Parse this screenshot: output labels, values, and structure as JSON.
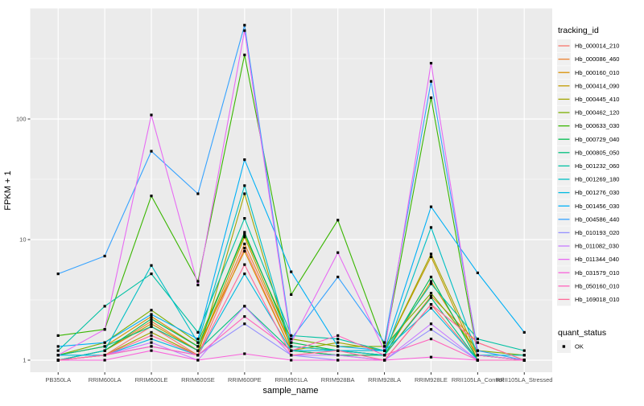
{
  "chart_data": {
    "type": "line",
    "title": "",
    "xlabel": "sample_name",
    "ylabel": "FPKM + 1",
    "y_scale": "log10",
    "y_ticks": [
      1,
      10,
      100
    ],
    "y_tick_labels": [
      "1",
      "10",
      "100"
    ],
    "y_minor_ticks": [
      3.162,
      31.62,
      316.2
    ],
    "ylim_log10": [
      -0.105,
      2.92
    ],
    "grid": true,
    "panel_bg": "#EBEBEB",
    "grid_color": "#FFFFFF",
    "point_color": "#000000",
    "point_shape": "square",
    "legend_position": "right",
    "legend_title": "tracking_id",
    "legend2_title": "quant_status",
    "legend2_items": [
      {
        "label": "OK",
        "marker": "black-square"
      }
    ],
    "categories": [
      "PB350LA",
      "RRIM600LA",
      "RRIM600LE",
      "RRIM600SE",
      "RRIM600PE",
      "RRIM901LA",
      "RRIM928BA",
      "RRIM928LA",
      "RRIM928LE",
      "RRII105LA_Control",
      "RRII105LA_Stressed"
    ],
    "series": [
      {
        "name": "Hb_000014_210",
        "color": "#F8766D",
        "values": [
          1.0,
          1.1,
          1.9,
          1.1,
          8.5,
          1.2,
          1.1,
          1.0,
          2.9,
          1.0,
          1.0
        ]
      },
      {
        "name": "Hb_000086_460",
        "color": "#EA8331",
        "values": [
          1.0,
          1.2,
          2.1,
          1.2,
          9.2,
          1.3,
          1.2,
          1.1,
          3.4,
          1.4,
          1.0
        ]
      },
      {
        "name": "Hb_000160_010",
        "color": "#D89000",
        "values": [
          1.1,
          1.3,
          2.3,
          1.3,
          8.0,
          1.2,
          1.1,
          1.1,
          4.5,
          1.1,
          1.0
        ]
      },
      {
        "name": "Hb_000414_090",
        "color": "#C09B00",
        "values": [
          1.0,
          1.2,
          2.0,
          1.2,
          10.5,
          1.3,
          1.2,
          1.2,
          7.2,
          1.0,
          1.0
        ]
      },
      {
        "name": "Hb_000445_410",
        "color": "#A3A500",
        "values": [
          1.0,
          1.1,
          1.7,
          1.1,
          24.0,
          1.2,
          1.4,
          1.2,
          7.6,
          1.1,
          1.0
        ]
      },
      {
        "name": "Hb_000462_120",
        "color": "#7CAE00",
        "values": [
          1.1,
          1.4,
          2.6,
          1.4,
          11.0,
          1.5,
          1.3,
          1.3,
          3.6,
          1.2,
          1.1
        ]
      },
      {
        "name": "Hb_000633_030",
        "color": "#39B600",
        "values": [
          1.6,
          1.8,
          23.0,
          4.5,
          340,
          3.5,
          14.5,
          1.3,
          150,
          1.1,
          1.0
        ]
      },
      {
        "name": "Hb_000729_040",
        "color": "#00BB4E",
        "values": [
          1.0,
          1.2,
          2.2,
          1.3,
          11.5,
          1.4,
          1.2,
          1.1,
          4.9,
          1.0,
          1.0
        ]
      },
      {
        "name": "Hb_000805_050",
        "color": "#00BF7D",
        "values": [
          1.1,
          1.3,
          1.9,
          1.2,
          2.8,
          1.2,
          1.1,
          1.1,
          3.3,
          1.0,
          1.0
        ]
      },
      {
        "name": "Hb_001232_060",
        "color": "#00C1A3",
        "values": [
          1.2,
          2.8,
          5.2,
          1.7,
          15.0,
          1.6,
          1.5,
          1.2,
          4.3,
          1.5,
          1.2
        ]
      },
      {
        "name": "Hb_001269_180",
        "color": "#00BFC4",
        "values": [
          1.0,
          1.2,
          6.1,
          1.4,
          28.0,
          1.3,
          1.2,
          1.1,
          12.6,
          1.1,
          1.1
        ]
      },
      {
        "name": "Hb_001276_030",
        "color": "#00BAE0",
        "values": [
          1.1,
          1.1,
          1.5,
          1.1,
          5.2,
          1.2,
          1.2,
          1.2,
          2.7,
          1.0,
          1.0
        ]
      },
      {
        "name": "Hb_001456_030",
        "color": "#00B0F6",
        "values": [
          1.3,
          1.4,
          2.4,
          1.5,
          46.0,
          5.4,
          1.3,
          1.2,
          18.7,
          5.3,
          1.7
        ]
      },
      {
        "name": "Hb_004586_440",
        "color": "#35A2FF",
        "values": [
          5.2,
          7.3,
          54.0,
          24.0,
          600,
          1.5,
          4.9,
          1.4,
          205,
          1.2,
          1.0
        ]
      },
      {
        "name": "Hb_010193_020",
        "color": "#9590FF",
        "values": [
          1.0,
          1.1,
          1.3,
          1.1,
          2.0,
          1.1,
          1.0,
          1.0,
          1.8,
          1.0,
          1.0
        ]
      },
      {
        "name": "Hb_011082_030",
        "color": "#C77CFF",
        "values": [
          1.0,
          1.1,
          1.4,
          1.0,
          2.8,
          1.1,
          1.1,
          1.0,
          2.0,
          1.0,
          1.0
        ]
      },
      {
        "name": "Hb_011344_040",
        "color": "#E76BF3",
        "values": [
          1.1,
          1.8,
          108,
          4.2,
          540,
          1.4,
          7.8,
          1.2,
          290,
          1.1,
          1.0
        ]
      },
      {
        "name": "Hb_031579_010",
        "color": "#FA62DB",
        "values": [
          1.0,
          1.0,
          1.2,
          1.0,
          1.13,
          1.0,
          1.0,
          1.0,
          1.06,
          1.0,
          1.0
        ]
      },
      {
        "name": "Hb_050160_010",
        "color": "#FF62BC",
        "values": [
          1.0,
          1.1,
          1.3,
          1.1,
          2.3,
          1.2,
          1.6,
          1.1,
          1.5,
          1.0,
          1.0
        ]
      },
      {
        "name": "Hb_169018_010",
        "color": "#FF6A98",
        "values": [
          1.0,
          1.1,
          1.6,
          1.1,
          6.2,
          1.1,
          1.2,
          1.0,
          2.9,
          1.4,
          1.0
        ]
      }
    ]
  }
}
